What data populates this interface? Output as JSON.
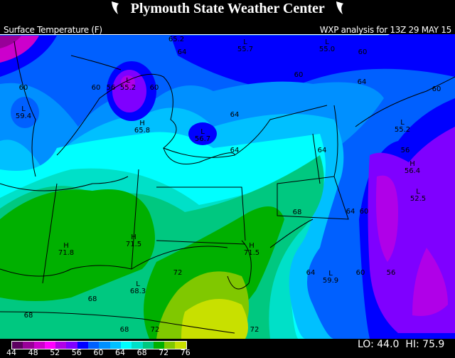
{
  "header": {
    "title": "Plymouth State Weather Center",
    "logo_icon": "white-claw-logo"
  },
  "map_title": "Surface Temperature (F)",
  "analysis": "WXP analysis for 13Z 29 MAY 15",
  "legend": {
    "ticks": [
      "44",
      "48",
      "52",
      "56",
      "60",
      "64",
      "68",
      "72",
      "76"
    ],
    "colors": [
      "#5c0060",
      "#990099",
      "#cc00cc",
      "#ff00ff",
      "#b000e8",
      "#7f00ff",
      "#0000ff",
      "#0060ff",
      "#0090ff",
      "#00c0ff",
      "#00ffff",
      "#00e0c8",
      "#00c880",
      "#00b000",
      "#80c800",
      "#c8e000"
    ]
  },
  "stats": {
    "lo_label": "LO:",
    "lo": "44.0",
    "hi_label": "HI:",
    "hi": "75.9"
  },
  "map_labels": [
    {
      "text": "65.2",
      "mark": "H"
    },
    {
      "text": "64",
      "mark": ""
    },
    {
      "text": "55.7",
      "mark": "L"
    },
    {
      "text": "55.0",
      "mark": "L"
    },
    {
      "text": "60",
      "mark": ""
    },
    {
      "text": "60",
      "mark": ""
    },
    {
      "text": "56",
      "mark": ""
    },
    {
      "text": "55.2",
      "mark": "L"
    },
    {
      "text": "60",
      "mark": ""
    },
    {
      "text": "60",
      "mark": ""
    },
    {
      "text": "59.4",
      "mark": "L"
    },
    {
      "text": "65.8",
      "mark": "H"
    },
    {
      "text": "56.7",
      "mark": "L"
    },
    {
      "text": "64",
      "mark": ""
    },
    {
      "text": "60",
      "mark": ""
    },
    {
      "text": "64",
      "mark": ""
    },
    {
      "text": "60",
      "mark": ""
    },
    {
      "text": "55.2",
      "mark": "L"
    },
    {
      "text": "56",
      "mark": ""
    },
    {
      "text": "56.4",
      "mark": "H"
    },
    {
      "text": "64",
      "mark": ""
    },
    {
      "text": "64",
      "mark": ""
    },
    {
      "text": "52.5",
      "mark": "L"
    },
    {
      "text": "64",
      "mark": ""
    },
    {
      "text": "60",
      "mark": ""
    },
    {
      "text": "68",
      "mark": ""
    },
    {
      "text": "71.8",
      "mark": "H"
    },
    {
      "text": "71.5",
      "mark": "H"
    },
    {
      "text": "71.5",
      "mark": "H"
    },
    {
      "text": "72",
      "mark": ""
    },
    {
      "text": "68.3",
      "mark": "L"
    },
    {
      "text": "68",
      "mark": ""
    },
    {
      "text": "64",
      "mark": ""
    },
    {
      "text": "59.9",
      "mark": "L"
    },
    {
      "text": "60",
      "mark": ""
    },
    {
      "text": "56",
      "mark": ""
    },
    {
      "text": "68",
      "mark": ""
    },
    {
      "text": "68",
      "mark": ""
    },
    {
      "text": "72",
      "mark": ""
    },
    {
      "text": "72",
      "mark": ""
    }
  ]
}
